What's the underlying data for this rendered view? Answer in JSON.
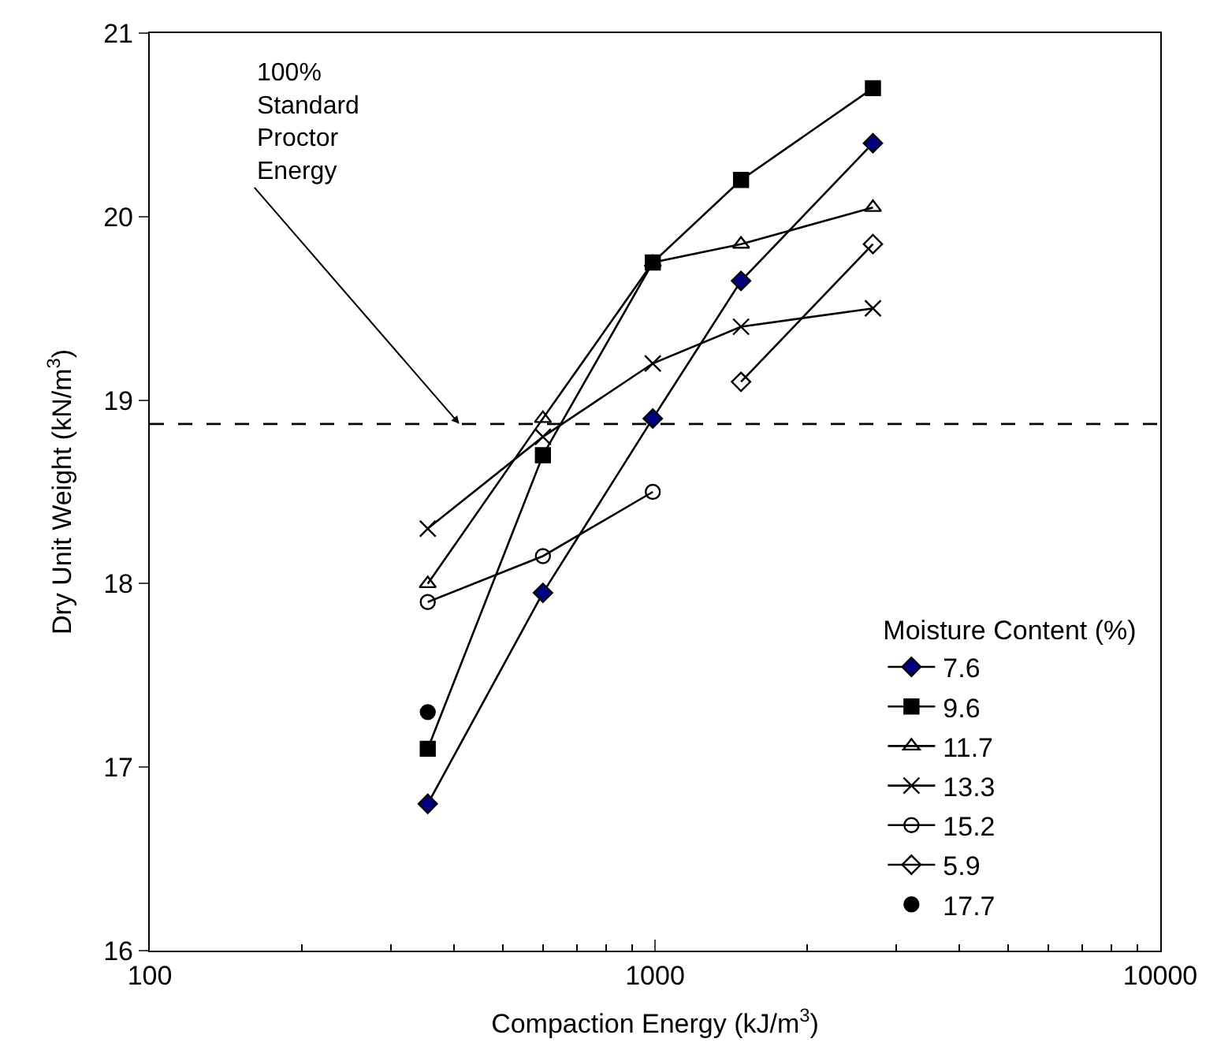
{
  "chart_data": {
    "type": "line",
    "xlabel": "Compaction Energy (kJ/m$^{3}$)",
    "ylabel": "Dry Unit Weight (kN/m$^{3}$)",
    "legend_title": "Moisture Content (%)",
    "log": "x",
    "xlim": [
      100,
      10000
    ],
    "xticks": [
      100,
      1000,
      10000
    ],
    "ylim": [
      16,
      21
    ],
    "yticks": [
      16,
      17,
      18,
      19,
      20,
      21
    ],
    "legend": "bottom right",
    "series": [
      {
        "name": "7.6",
        "color": "#000080",
        "marker": "diamond",
        "x": [
          355,
          600,
          990,
          1480,
          2700
        ],
        "values": [
          16.8,
          17.95,
          18.9,
          19.65,
          20.4
        ]
      },
      {
        "name": "9.6",
        "color": "#000000",
        "marker": "square",
        "x": [
          355,
          600,
          990,
          1480,
          2700
        ],
        "values": [
          17.1,
          18.7,
          19.75,
          20.2,
          20.7
        ]
      },
      {
        "name": "11.7",
        "color": "#000000",
        "marker": "triangle",
        "x": [
          355,
          600,
          990,
          1480,
          2700
        ],
        "values": [
          18.0,
          18.9,
          19.75,
          19.85,
          20.05
        ]
      },
      {
        "name": "13.3",
        "color": "#000000",
        "marker": "cross",
        "x": [
          355,
          600,
          990,
          1480,
          2700
        ],
        "values": [
          18.3,
          18.8,
          19.2,
          19.4,
          19.5
        ]
      },
      {
        "name": "15.2",
        "color": "#000000",
        "marker": "circle",
        "x": [
          355,
          600,
          990
        ],
        "values": [
          17.9,
          18.15,
          18.5
        ]
      },
      {
        "name": "5.9",
        "color": "#000000",
        "marker": "diamond",
        "x": [
          1480,
          2700
        ],
        "values": [
          19.1,
          19.85
        ]
      },
      {
        "name": "17.7",
        "color": "#000000",
        "marker": "circle",
        "type": "scatter",
        "x": [
          355
        ],
        "values": [
          17.3
        ]
      }
    ],
    "ref_lines": [
      {
        "axis": "y",
        "value": 18.87,
        "color": "#000000",
        "line_style": "dashed"
      }
    ],
    "annotations": [
      {
        "text": "100%\nStandard\nProctor\nEnergy",
        "x": 410,
        "y": 18.87
      }
    ]
  }
}
